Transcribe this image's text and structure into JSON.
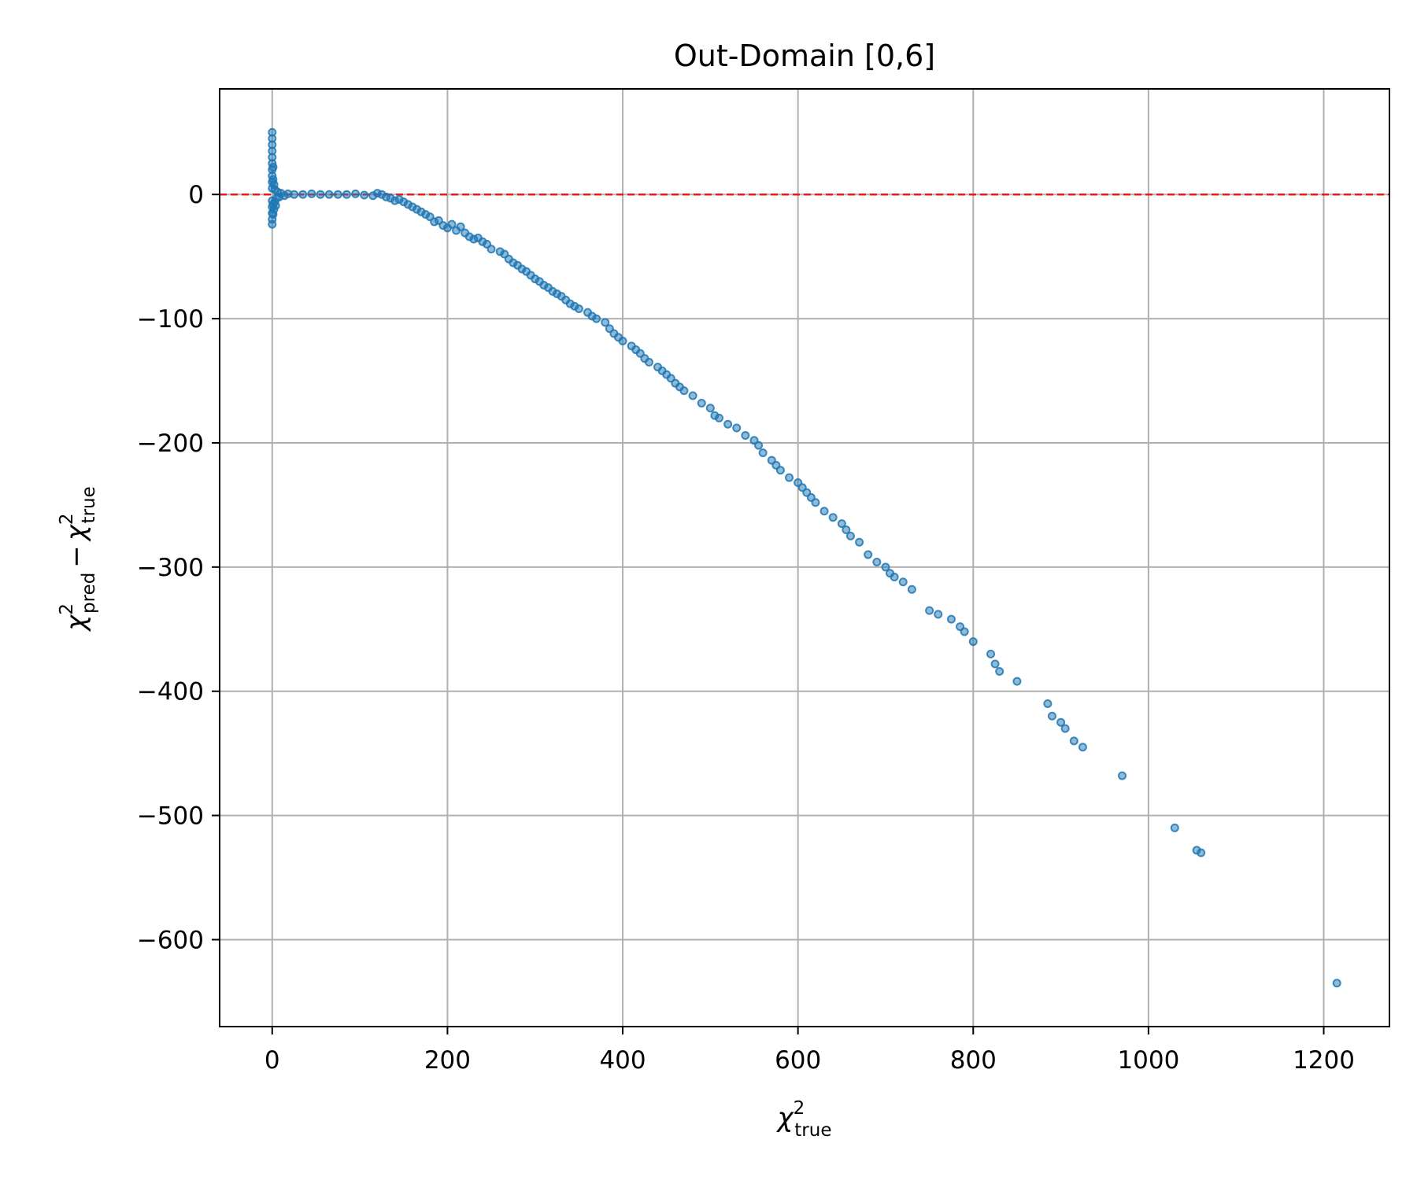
{
  "chart_data": {
    "type": "scatter",
    "title": "Out-Domain [0,6]",
    "xlabel": {
      "symbol": "χ",
      "sup": "2",
      "sub": "true"
    },
    "ylabel": {
      "first": {
        "symbol": "χ",
        "sup": "2",
        "sub": "pred"
      },
      "operator": "−",
      "second": {
        "symbol": "χ",
        "sup": "2",
        "sub": "true"
      }
    },
    "xlim": [
      -60,
      1275
    ],
    "ylim": [
      -670,
      85
    ],
    "xticks": [
      0,
      200,
      400,
      600,
      800,
      1000,
      1200
    ],
    "xtick_labels": [
      "0",
      "200",
      "400",
      "600",
      "800",
      "1000",
      "1200"
    ],
    "yticks": [
      0,
      -100,
      -200,
      -300,
      -400,
      -500,
      -600
    ],
    "ytick_labels": [
      "0",
      "−100",
      "−200",
      "−300",
      "−400",
      "−500",
      "−600"
    ],
    "grid": true,
    "reference_line": {
      "y": 0,
      "style": "dashed",
      "color": "#e41a1c"
    },
    "marker_color": "#1f77b4",
    "points": [
      [
        0,
        50
      ],
      [
        0,
        45
      ],
      [
        0,
        40
      ],
      [
        0,
        35
      ],
      [
        0,
        30
      ],
      [
        0,
        25
      ],
      [
        0,
        20
      ],
      [
        0,
        15
      ],
      [
        0,
        10
      ],
      [
        0,
        5
      ],
      [
        0,
        -5
      ],
      [
        0,
        -10
      ],
      [
        0,
        -15
      ],
      [
        0,
        -20
      ],
      [
        0,
        -24
      ],
      [
        1,
        22
      ],
      [
        1,
        12
      ],
      [
        1,
        -8
      ],
      [
        1,
        -16
      ],
      [
        2,
        8
      ],
      [
        2,
        -12
      ],
      [
        3,
        4
      ],
      [
        3,
        -6
      ],
      [
        4,
        -9
      ],
      [
        5,
        -3
      ],
      [
        6,
        2
      ],
      [
        8,
        -2
      ],
      [
        10,
        1
      ],
      [
        14,
        -1
      ],
      [
        18,
        0.5
      ],
      [
        25,
        0
      ],
      [
        35,
        0
      ],
      [
        45,
        0.5
      ],
      [
        55,
        0
      ],
      [
        65,
        0
      ],
      [
        75,
        0
      ],
      [
        85,
        0
      ],
      [
        95,
        0.5
      ],
      [
        105,
        -0.5
      ],
      [
        115,
        -1
      ],
      [
        120,
        1
      ],
      [
        125,
        0
      ],
      [
        130,
        -2
      ],
      [
        135,
        -3
      ],
      [
        140,
        -5
      ],
      [
        145,
        -4
      ],
      [
        150,
        -6
      ],
      [
        155,
        -8
      ],
      [
        160,
        -10
      ],
      [
        165,
        -12
      ],
      [
        170,
        -14
      ],
      [
        175,
        -16
      ],
      [
        180,
        -18
      ],
      [
        185,
        -22
      ],
      [
        190,
        -21
      ],
      [
        195,
        -25
      ],
      [
        200,
        -27
      ],
      [
        205,
        -24
      ],
      [
        210,
        -29
      ],
      [
        215,
        -26
      ],
      [
        220,
        -31
      ],
      [
        225,
        -34
      ],
      [
        230,
        -36
      ],
      [
        235,
        -35
      ],
      [
        240,
        -38
      ],
      [
        245,
        -40
      ],
      [
        250,
        -44
      ],
      [
        260,
        -46
      ],
      [
        265,
        -48
      ],
      [
        270,
        -52
      ],
      [
        275,
        -55
      ],
      [
        280,
        -57
      ],
      [
        285,
        -60
      ],
      [
        290,
        -62
      ],
      [
        295,
        -65
      ],
      [
        300,
        -68
      ],
      [
        305,
        -70
      ],
      [
        310,
        -73
      ],
      [
        315,
        -75
      ],
      [
        320,
        -78
      ],
      [
        325,
        -80
      ],
      [
        330,
        -82
      ],
      [
        335,
        -85
      ],
      [
        340,
        -88
      ],
      [
        345,
        -90
      ],
      [
        350,
        -92
      ],
      [
        360,
        -95
      ],
      [
        365,
        -98
      ],
      [
        370,
        -100
      ],
      [
        380,
        -103
      ],
      [
        385,
        -108
      ],
      [
        390,
        -112
      ],
      [
        395,
        -115
      ],
      [
        400,
        -118
      ],
      [
        410,
        -122
      ],
      [
        415,
        -125
      ],
      [
        420,
        -128
      ],
      [
        425,
        -132
      ],
      [
        430,
        -135
      ],
      [
        440,
        -139
      ],
      [
        445,
        -142
      ],
      [
        450,
        -145
      ],
      [
        455,
        -148
      ],
      [
        460,
        -152
      ],
      [
        465,
        -155
      ],
      [
        470,
        -158
      ],
      [
        480,
        -162
      ],
      [
        490,
        -168
      ],
      [
        500,
        -172
      ],
      [
        505,
        -178
      ],
      [
        510,
        -180
      ],
      [
        520,
        -185
      ],
      [
        530,
        -188
      ],
      [
        540,
        -194
      ],
      [
        550,
        -198
      ],
      [
        555,
        -202
      ],
      [
        560,
        -208
      ],
      [
        570,
        -214
      ],
      [
        575,
        -218
      ],
      [
        580,
        -222
      ],
      [
        590,
        -228
      ],
      [
        600,
        -232
      ],
      [
        605,
        -236
      ],
      [
        610,
        -240
      ],
      [
        615,
        -244
      ],
      [
        620,
        -248
      ],
      [
        630,
        -255
      ],
      [
        640,
        -260
      ],
      [
        650,
        -265
      ],
      [
        655,
        -270
      ],
      [
        660,
        -275
      ],
      [
        670,
        -280
      ],
      [
        680,
        -290
      ],
      [
        690,
        -296
      ],
      [
        700,
        -300
      ],
      [
        705,
        -305
      ],
      [
        710,
        -308
      ],
      [
        720,
        -312
      ],
      [
        730,
        -318
      ],
      [
        750,
        -335
      ],
      [
        760,
        -338
      ],
      [
        775,
        -342
      ],
      [
        785,
        -348
      ],
      [
        790,
        -352
      ],
      [
        800,
        -360
      ],
      [
        820,
        -370
      ],
      [
        825,
        -378
      ],
      [
        830,
        -384
      ],
      [
        850,
        -392
      ],
      [
        885,
        -410
      ],
      [
        890,
        -420
      ],
      [
        900,
        -425
      ],
      [
        905,
        -430
      ],
      [
        915,
        -440
      ],
      [
        925,
        -445
      ],
      [
        970,
        -468
      ],
      [
        1030,
        -510
      ],
      [
        1055,
        -528
      ],
      [
        1060,
        -530
      ],
      [
        1215,
        -635
      ]
    ]
  }
}
